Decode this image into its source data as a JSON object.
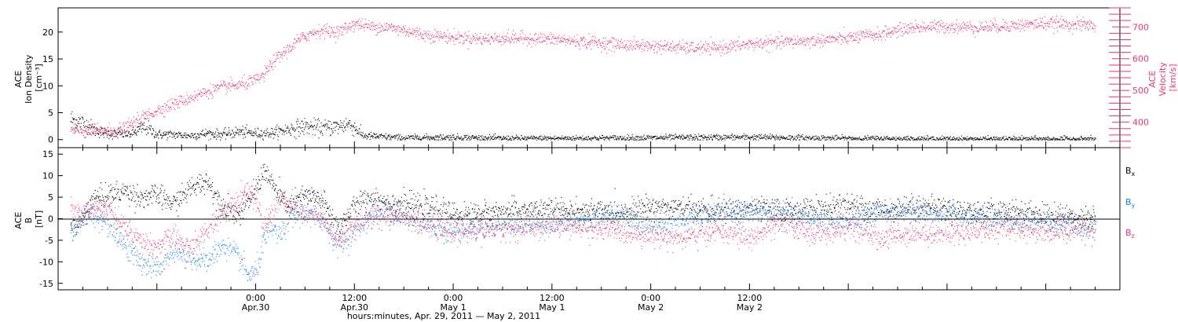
{
  "chart_data": [
    {
      "type": "scatter",
      "panel": "top",
      "ylabel_left": [
        "ACE",
        "Ion Density",
        "[cm⁻³]"
      ],
      "ylabel_right": [
        "ACE",
        "Velocity",
        "[km/s]"
      ],
      "left_axis": {
        "ylim": [
          -1.5,
          24.5
        ],
        "ticks": [
          0,
          5,
          10,
          15,
          20
        ]
      },
      "right_axis": {
        "ylim": [
          320,
          760
        ],
        "ticks": [
          400,
          500,
          600,
          700
        ]
      },
      "series": [
        {
          "axis": "left",
          "color": "#000000",
          "anchors_hours": [
            -22.5,
            -21,
            -19,
            -17,
            -15,
            -13.5,
            -12,
            -10,
            -8,
            -6,
            -4,
            -2,
            0,
            2,
            4,
            6,
            8,
            10,
            11.2,
            12,
            13,
            15,
            18,
            24,
            30,
            36,
            48,
            60,
            72,
            84,
            96,
            102
          ],
          "anchors_value": [
            3.8,
            3.0,
            1.5,
            1.0,
            1.2,
            2.5,
            1.0,
            1.0,
            0.8,
            1.2,
            1.0,
            1.5,
            1.2,
            1.3,
            2.0,
            2.5,
            2.2,
            2.5,
            3.0,
            2.3,
            0.8,
            0.6,
            0.4,
            0.5,
            0.3,
            0.3,
            0.4,
            0.5,
            0.3,
            0.2,
            0.2,
            0.2
          ]
        },
        {
          "axis": "right",
          "color": "#E8386A",
          "anchors_hours": [
            -22.5,
            -19,
            -16,
            -14,
            -12,
            -10,
            -8,
            -6,
            -4,
            -2,
            0,
            1,
            2,
            4,
            5,
            6,
            7,
            8,
            10,
            12,
            14,
            16,
            18,
            20,
            24,
            28,
            32,
            36,
            40,
            44,
            48,
            52,
            56,
            60,
            64,
            68,
            72,
            76,
            78,
            80,
            84,
            88,
            92,
            96,
            102
          ],
          "anchors_value": [
            375,
            372,
            380,
            412,
            438,
            458,
            478,
            497,
            512,
            518,
            532,
            550,
            590,
            632,
            656,
            672,
            684,
            690,
            685,
            712,
            702,
            700,
            692,
            678,
            668,
            663,
            666,
            662,
            654,
            646,
            641,
            635,
            634,
            647,
            654,
            658,
            666,
            679,
            690,
            700,
            702,
            700,
            706,
            712,
            706
          ]
        }
      ]
    },
    {
      "type": "scatter",
      "panel": "bottom",
      "ylabel": [
        "ACE",
        "B",
        "[nT]"
      ],
      "ylim": [
        -16.5,
        16.5
      ],
      "ticks": [
        -15,
        -10,
        -5,
        0,
        5,
        10,
        15
      ],
      "zero_line": true,
      "legend": {
        "position": "right",
        "entries": [
          {
            "main": "B",
            "sub": "x",
            "color": "#000000"
          },
          {
            "main": "B",
            "sub": "y",
            "color": "#1E7FE0"
          },
          {
            "main": "B",
            "sub": "z",
            "color": "#E8386A"
          }
        ]
      },
      "series": [
        {
          "name": "Bx",
          "color": "#000000",
          "anchors_hours": [
            -22.5,
            -21,
            -20,
            -18,
            -16,
            -14,
            -12,
            -10,
            -8,
            -6,
            -4,
            -2,
            0,
            1,
            2,
            3,
            4,
            6,
            8,
            10,
            12,
            14,
            16,
            18,
            20,
            22,
            24,
            28,
            32,
            36,
            40,
            44,
            48,
            52,
            56,
            60,
            64,
            68,
            72,
            76,
            80,
            84,
            88,
            92,
            96,
            100,
            102
          ],
          "anchors_value": [
            -3,
            0,
            4.5,
            5.5,
            6.5,
            5.0,
            5.5,
            3.5,
            7.0,
            9.0,
            3.0,
            1.0,
            7.0,
            11.5,
            8.0,
            5.0,
            3.0,
            5.5,
            4.5,
            -2.0,
            3.0,
            5.0,
            4.0,
            3.5,
            3.0,
            2.5,
            1.0,
            1.5,
            2.0,
            2.2,
            1.8,
            1.5,
            3.0,
            2.5,
            2.0,
            2.5,
            2.0,
            2.5,
            3.0,
            2.0,
            3.0,
            2.5,
            1.5,
            2.0,
            1.0,
            0.5,
            0.5
          ]
        },
        {
          "name": "By",
          "color": "#1E7FE0",
          "anchors_hours": [
            -22.5,
            -21,
            -20,
            -18,
            -16,
            -14,
            -12,
            -10,
            -8,
            -6,
            -4,
            -2,
            -1,
            0,
            1,
            2,
            3,
            4,
            6,
            8,
            10,
            12,
            14,
            16,
            18,
            20,
            22,
            24,
            28,
            32,
            36,
            40,
            44,
            48,
            52,
            56,
            60,
            64,
            68,
            72,
            76,
            80,
            84,
            88,
            92,
            96,
            100,
            102
          ],
          "anchors_value": [
            -3,
            0,
            1.0,
            -1.0,
            -6.0,
            -10.0,
            -11.5,
            -8.0,
            -9.0,
            -10.0,
            -6.0,
            -9.0,
            -13.0,
            -12.5,
            -5.0,
            -2.0,
            -4.0,
            0.0,
            2.0,
            0.0,
            -6.0,
            -3.0,
            1.0,
            2.0,
            0.0,
            -1.0,
            -2.0,
            -3.0,
            -2.0,
            -1.0,
            -1.5,
            0.0,
            1.0,
            -2.0,
            0.0,
            1.0,
            1.5,
            1.0,
            0.0,
            -1.0,
            1.5,
            2.0,
            1.0,
            0.5,
            -0.5,
            -1.0,
            -2.0,
            -2.5
          ]
        },
        {
          "name": "Bz",
          "color": "#E8386A",
          "anchors_hours": [
            -22.5,
            -21,
            -20,
            -18,
            -16,
            -14,
            -12,
            -10,
            -8,
            -6,
            -4,
            -2,
            -1,
            0,
            1,
            2,
            3,
            4,
            6,
            8,
            10,
            12,
            14,
            16,
            18,
            20,
            22,
            24,
            28,
            32,
            36,
            40,
            44,
            48,
            52,
            56,
            60,
            64,
            68,
            72,
            76,
            80,
            84,
            88,
            92,
            96,
            100,
            102
          ],
          "anchors_value": [
            2,
            1.0,
            2.0,
            3.0,
            -2.0,
            -5.0,
            -6.5,
            -4.0,
            -7.0,
            -3.0,
            2.0,
            5.0,
            7.0,
            4.0,
            -2.0,
            2.0,
            5.0,
            3.0,
            1.0,
            0.0,
            -5.5,
            -1.0,
            0.0,
            1.0,
            1.0,
            -1.0,
            -2.0,
            -3.0,
            -2.0,
            -2.5,
            -1.5,
            -2.0,
            -3.0,
            -3.5,
            -4.5,
            -2.5,
            -4.5,
            -1.0,
            -3.5,
            -2.0,
            -4.5,
            -3.0,
            -3.5,
            -2.5,
            -2.0,
            -3.0,
            -2.0,
            -2.5
          ]
        }
      ]
    }
  ],
  "x_axis": {
    "range_hours": [
      -24,
      105
    ],
    "label": "hours:minutes, Apr. 29, 2011 — May  2, 2011",
    "ticks": [
      {
        "hour": 0,
        "time": "0:00",
        "date": "Apr.30"
      },
      {
        "hour": 12,
        "time": "12:00",
        "date": "Apr.30"
      },
      {
        "hour": 24,
        "time": "0:00",
        "date": "May 1"
      },
      {
        "hour": 36,
        "time": "12:00",
        "date": "May 1"
      },
      {
        "hour": 48,
        "time": "0:00",
        "date": "May 2"
      },
      {
        "hour": 60,
        "time": "12:00",
        "date": "May 2"
      }
    ]
  }
}
